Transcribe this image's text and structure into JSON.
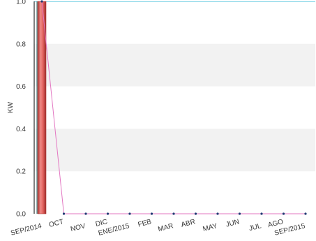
{
  "chart_data": {
    "type": "bar",
    "ylabel": "KW",
    "ylim": [
      0,
      1.0
    ],
    "yticks": [
      "0.0",
      "0.2",
      "0.4",
      "0.6",
      "0.8",
      "1.0"
    ],
    "grid": "alternating horizontal bands",
    "categories": [
      "SEP/2014",
      "OCT",
      "NOV",
      "DIC",
      "ENE/2015",
      "FEB",
      "MAR",
      "ABR",
      "MAY",
      "JUN",
      "JUL",
      "AGO",
      "SEP/2015"
    ],
    "series": [
      {
        "type": "bar",
        "values": [
          1.0,
          0,
          0,
          0,
          0,
          0,
          0,
          0,
          0,
          0,
          0,
          0,
          0
        ]
      },
      {
        "type": "line",
        "values": [
          1.0,
          0,
          0,
          0,
          0,
          0,
          0,
          0,
          0,
          0,
          0,
          0,
          0
        ]
      }
    ],
    "colors": {
      "bar_fill": "#d9534f",
      "bar_edge": "#b03a36",
      "line": "#e377c2",
      "marker": "#1f3b73",
      "top_line": "#7fd3e6",
      "band": "#f2f2f2",
      "axis": "#000000"
    }
  }
}
